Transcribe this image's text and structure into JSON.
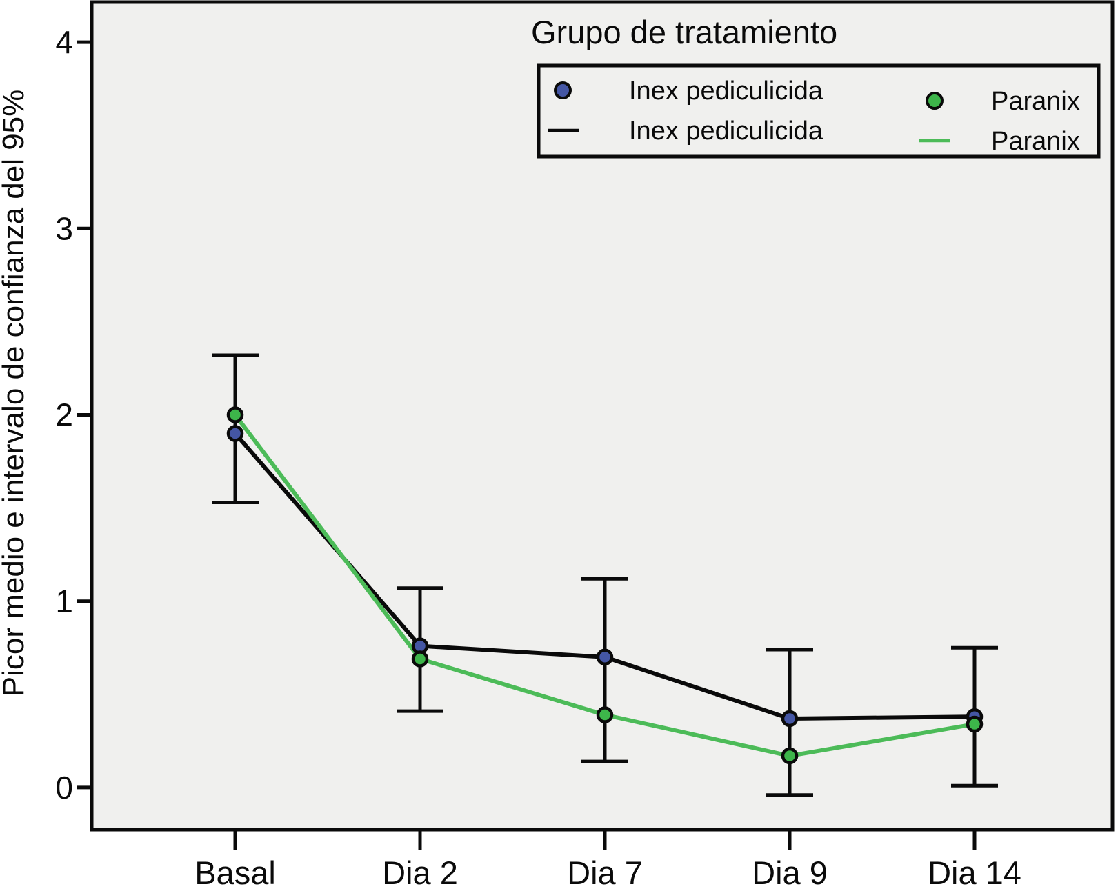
{
  "chart_data": {
    "type": "line",
    "title": "",
    "legend_title": "Grupo de tratamiento",
    "legend_position": "top-right",
    "ylabel": "Picor medio e intervalo de confianza del 95%",
    "xlabel": "",
    "categories": [
      "Basal",
      "Dia 2",
      "Dia 7",
      "Dia 9",
      "Dia 14"
    ],
    "ytick_labels": [
      "0",
      "1",
      "2",
      "3",
      "4"
    ],
    "yticks": [
      0,
      1,
      2,
      3,
      4
    ],
    "ylim": [
      -0.226,
      4.215
    ],
    "grid": false,
    "plot_bg_color": "#F0F0EE",
    "frame_color": "#0a0a0a",
    "series": [
      {
        "name": "Inex pediculicida",
        "marker_color": "#4456A4",
        "line_color": "#0a0a0a",
        "values": [
          1.9,
          0.76,
          0.7,
          0.37,
          0.38
        ]
      },
      {
        "name": "Paranix",
        "marker_color": "#3DB54A",
        "line_color": "#4CBB58",
        "values": [
          2.0,
          0.69,
          0.39,
          0.17,
          0.34
        ]
      }
    ],
    "error_bars": [
      {
        "category": "Basal",
        "low": 1.53,
        "high": 2.32
      },
      {
        "category": "Dia 2",
        "low": 0.41,
        "high": 1.07
      },
      {
        "category": "Dia 7",
        "low": 0.14,
        "high": 1.12
      },
      {
        "category": "Dia 9",
        "low": -0.04,
        "high": 0.74
      },
      {
        "category": "Dia 14",
        "low": 0.01,
        "high": 0.75
      }
    ],
    "legend_entries": [
      {
        "label": "Inex pediculicida",
        "marker": "circle",
        "color": "#4456A4"
      },
      {
        "label": "Inex pediculicida",
        "marker": "line",
        "color": "#0a0a0a"
      },
      {
        "label": "Paranix",
        "marker": "circle",
        "color": "#3DB54A"
      },
      {
        "label": "Paranix",
        "marker": "line",
        "color": "#4CBB58"
      }
    ]
  }
}
